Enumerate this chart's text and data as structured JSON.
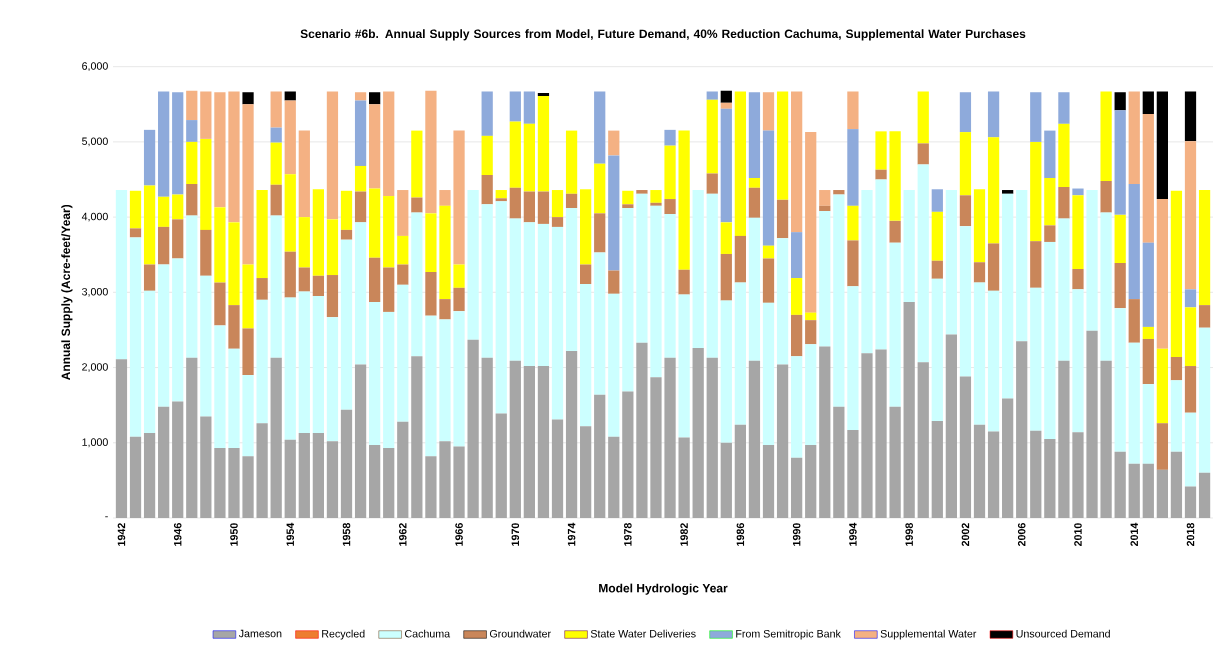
{
  "chart_data": {
    "type": "bar",
    "stacked": true,
    "title": "Scenario #6b.  Annual Supply Sources from Model, Future Demand, 40% Reduction Cachuma, Supplemental Water Purchases",
    "xlabel": "Model Hydrologic Year",
    "ylabel": "Annual Supply (Acre-feet/Year)",
    "categories": [
      "1942",
      null,
      null,
      null,
      "1946",
      null,
      null,
      null,
      "1950",
      null,
      null,
      null,
      "1954",
      null,
      null,
      null,
      "1958",
      null,
      null,
      null,
      "1962",
      null,
      null,
      null,
      "1966",
      null,
      null,
      null,
      "1970",
      null,
      null,
      null,
      "1974",
      null,
      null,
      null,
      "1978",
      null,
      null,
      null,
      "1982",
      null,
      null,
      null,
      "1986",
      null,
      null,
      null,
      "1990",
      null,
      null,
      null,
      "1994",
      null,
      null,
      null,
      "1998",
      null,
      null,
      null,
      "2002",
      null,
      null,
      null,
      "2006",
      null,
      null,
      null,
      "2010",
      null,
      null,
      null,
      "2014",
      null,
      null,
      null,
      "2018",
      null
    ],
    "ylim": [
      0,
      6000
    ],
    "yticks": [
      {
        "value": 0,
        "label": "-"
      },
      {
        "value": 1000,
        "label": "1,000"
      },
      {
        "value": 2000,
        "label": "2,000"
      },
      {
        "value": 3000,
        "label": "3,000"
      },
      {
        "value": 4000,
        "label": "4,000"
      },
      {
        "value": 5000,
        "label": "5,000"
      },
      {
        "value": 6000,
        "label": "6,000"
      }
    ],
    "grid": "y",
    "legend": "bottom",
    "series": [
      {
        "name": "Jameson",
        "color": "#a6a6a6",
        "values": [
          2110,
          1080,
          1130,
          1480,
          1550,
          2130,
          1350,
          930,
          930,
          820,
          1260,
          2130,
          1040,
          1130,
          1130,
          1020,
          1440,
          2040,
          970,
          930,
          1280,
          2150,
          820,
          1020,
          950,
          2370,
          2130,
          1390,
          2090,
          2020,
          2020,
          1310,
          2220,
          1220,
          1640,
          1080,
          1680,
          2330,
          1870,
          2130,
          1070,
          2260,
          2130,
          1000,
          1240,
          2090,
          970,
          2040,
          800,
          970,
          2280,
          1480,
          1170,
          2190,
          2240,
          1480,
          2870,
          2070,
          1290,
          2440,
          1880,
          1240,
          1150,
          1590,
          2350,
          1160,
          1050,
          2090,
          1140,
          2490,
          2090,
          880,
          720,
          720,
          640,
          880,
          420,
          600
        ]
      },
      {
        "name": "Recycled",
        "color": "#ed7d31",
        "values": [
          0,
          0,
          0,
          0,
          0,
          0,
          0,
          0,
          0,
          0,
          0,
          0,
          0,
          0,
          0,
          0,
          0,
          0,
          0,
          0,
          0,
          0,
          0,
          0,
          0,
          0,
          0,
          0,
          0,
          0,
          0,
          0,
          0,
          0,
          0,
          0,
          0,
          0,
          0,
          0,
          0,
          0,
          0,
          0,
          0,
          0,
          0,
          0,
          0,
          0,
          0,
          0,
          0,
          0,
          0,
          0,
          0,
          0,
          0,
          0,
          0,
          0,
          0,
          0,
          0,
          0,
          0,
          0,
          0,
          0,
          0,
          0,
          0,
          0,
          0,
          0,
          0,
          0
        ]
      },
      {
        "name": "Cachuma",
        "color": "#ccffff",
        "values": [
          2250,
          2650,
          1890,
          1890,
          1900,
          1890,
          1870,
          1630,
          1320,
          1080,
          1640,
          1890,
          1890,
          1880,
          1820,
          1650,
          2260,
          1890,
          1900,
          1810,
          1820,
          1910,
          1870,
          1620,
          1800,
          1990,
          2040,
          2820,
          1890,
          1910,
          1890,
          2560,
          1900,
          1890,
          1890,
          1900,
          2440,
          1980,
          2280,
          1910,
          1900,
          2100,
          2180,
          1890,
          1890,
          1900,
          1890,
          1680,
          1350,
          1340,
          1800,
          2820,
          1910,
          2170,
          2260,
          2180,
          1490,
          2630,
          1890,
          1920,
          2000,
          1890,
          1870,
          2720,
          2010,
          1900,
          2620,
          1890,
          1900,
          1870,
          1970,
          1910,
          1610,
          1060,
          0,
          950,
          980,
          1930
        ]
      },
      {
        "name": "Groundwater",
        "color": "#c9865a",
        "values": [
          0,
          120,
          350,
          500,
          520,
          420,
          610,
          570,
          580,
          620,
          290,
          410,
          610,
          320,
          270,
          560,
          130,
          410,
          590,
          590,
          270,
          200,
          580,
          270,
          310,
          0,
          390,
          40,
          410,
          410,
          430,
          130,
          190,
          260,
          520,
          310,
          50,
          50,
          40,
          200,
          330,
          0,
          270,
          620,
          620,
          400,
          590,
          510,
          550,
          320,
          70,
          60,
          610,
          0,
          130,
          290,
          0,
          280,
          240,
          0,
          410,
          270,
          630,
          0,
          0,
          620,
          220,
          420,
          270,
          0,
          420,
          600,
          580,
          600,
          620,
          310,
          620,
          300
        ]
      },
      {
        "name": "State Water Deliveries",
        "color": "#ffff00",
        "values": [
          0,
          500,
          1050,
          400,
          330,
          560,
          1210,
          1000,
          1100,
          850,
          1170,
          560,
          1030,
          670,
          1150,
          740,
          520,
          340,
          920,
          950,
          380,
          890,
          780,
          1240,
          310,
          0,
          520,
          110,
          880,
          900,
          1270,
          360,
          840,
          1000,
          660,
          0,
          180,
          0,
          170,
          710,
          1850,
          0,
          980,
          420,
          1920,
          130,
          170,
          1440,
          490,
          100,
          0,
          0,
          460,
          0,
          510,
          1190,
          0,
          690,
          650,
          0,
          840,
          970,
          1410,
          0,
          0,
          1320,
          630,
          840,
          980,
          0,
          1190,
          640,
          0,
          160,
          990,
          2210,
          780,
          1530
        ]
      },
      {
        "name": "From Semitropic Bank",
        "color": "#8eaadb",
        "values": [
          0,
          0,
          740,
          1400,
          1360,
          290,
          0,
          0,
          0,
          0,
          0,
          200,
          0,
          0,
          0,
          0,
          0,
          870,
          0,
          0,
          0,
          0,
          0,
          0,
          0,
          0,
          590,
          0,
          400,
          430,
          0,
          0,
          0,
          0,
          960,
          1530,
          0,
          0,
          0,
          210,
          0,
          0,
          110,
          1510,
          0,
          1140,
          1530,
          0,
          610,
          0,
          0,
          0,
          1020,
          0,
          0,
          0,
          0,
          0,
          300,
          0,
          530,
          0,
          610,
          0,
          0,
          660,
          630,
          420,
          90,
          0,
          0,
          1390,
          1530,
          1120,
          0,
          0,
          240,
          0
        ]
      },
      {
        "name": "Supplemental Water",
        "color": "#f4b183",
        "values": [
          0,
          0,
          0,
          0,
          0,
          390,
          630,
          1530,
          1740,
          2130,
          0,
          480,
          980,
          1150,
          0,
          1700,
          0,
          110,
          1120,
          1390,
          610,
          0,
          1630,
          210,
          1780,
          0,
          0,
          0,
          0,
          0,
          0,
          0,
          0,
          0,
          0,
          330,
          0,
          0,
          0,
          0,
          0,
          0,
          0,
          80,
          0,
          0,
          510,
          0,
          1870,
          2400,
          210,
          0,
          500,
          0,
          0,
          0,
          0,
          0,
          0,
          0,
          0,
          0,
          0,
          0,
          0,
          0,
          0,
          0,
          0,
          0,
          0,
          0,
          1230,
          1710,
          1990,
          0,
          1970,
          0
        ]
      },
      {
        "name": "Unsourced Demand",
        "color": "#000000",
        "values": [
          0,
          0,
          0,
          0,
          0,
          0,
          0,
          0,
          0,
          160,
          0,
          0,
          120,
          0,
          0,
          0,
          0,
          0,
          160,
          0,
          0,
          0,
          0,
          0,
          0,
          0,
          0,
          0,
          0,
          0,
          40,
          0,
          0,
          0,
          0,
          0,
          0,
          0,
          0,
          0,
          0,
          0,
          0,
          160,
          0,
          0,
          0,
          0,
          0,
          0,
          0,
          0,
          0,
          0,
          0,
          0,
          0,
          0,
          0,
          0,
          0,
          0,
          0,
          50,
          0,
          0,
          0,
          0,
          0,
          0,
          0,
          240,
          0,
          300,
          1430,
          0,
          660,
          0
        ]
      }
    ]
  }
}
